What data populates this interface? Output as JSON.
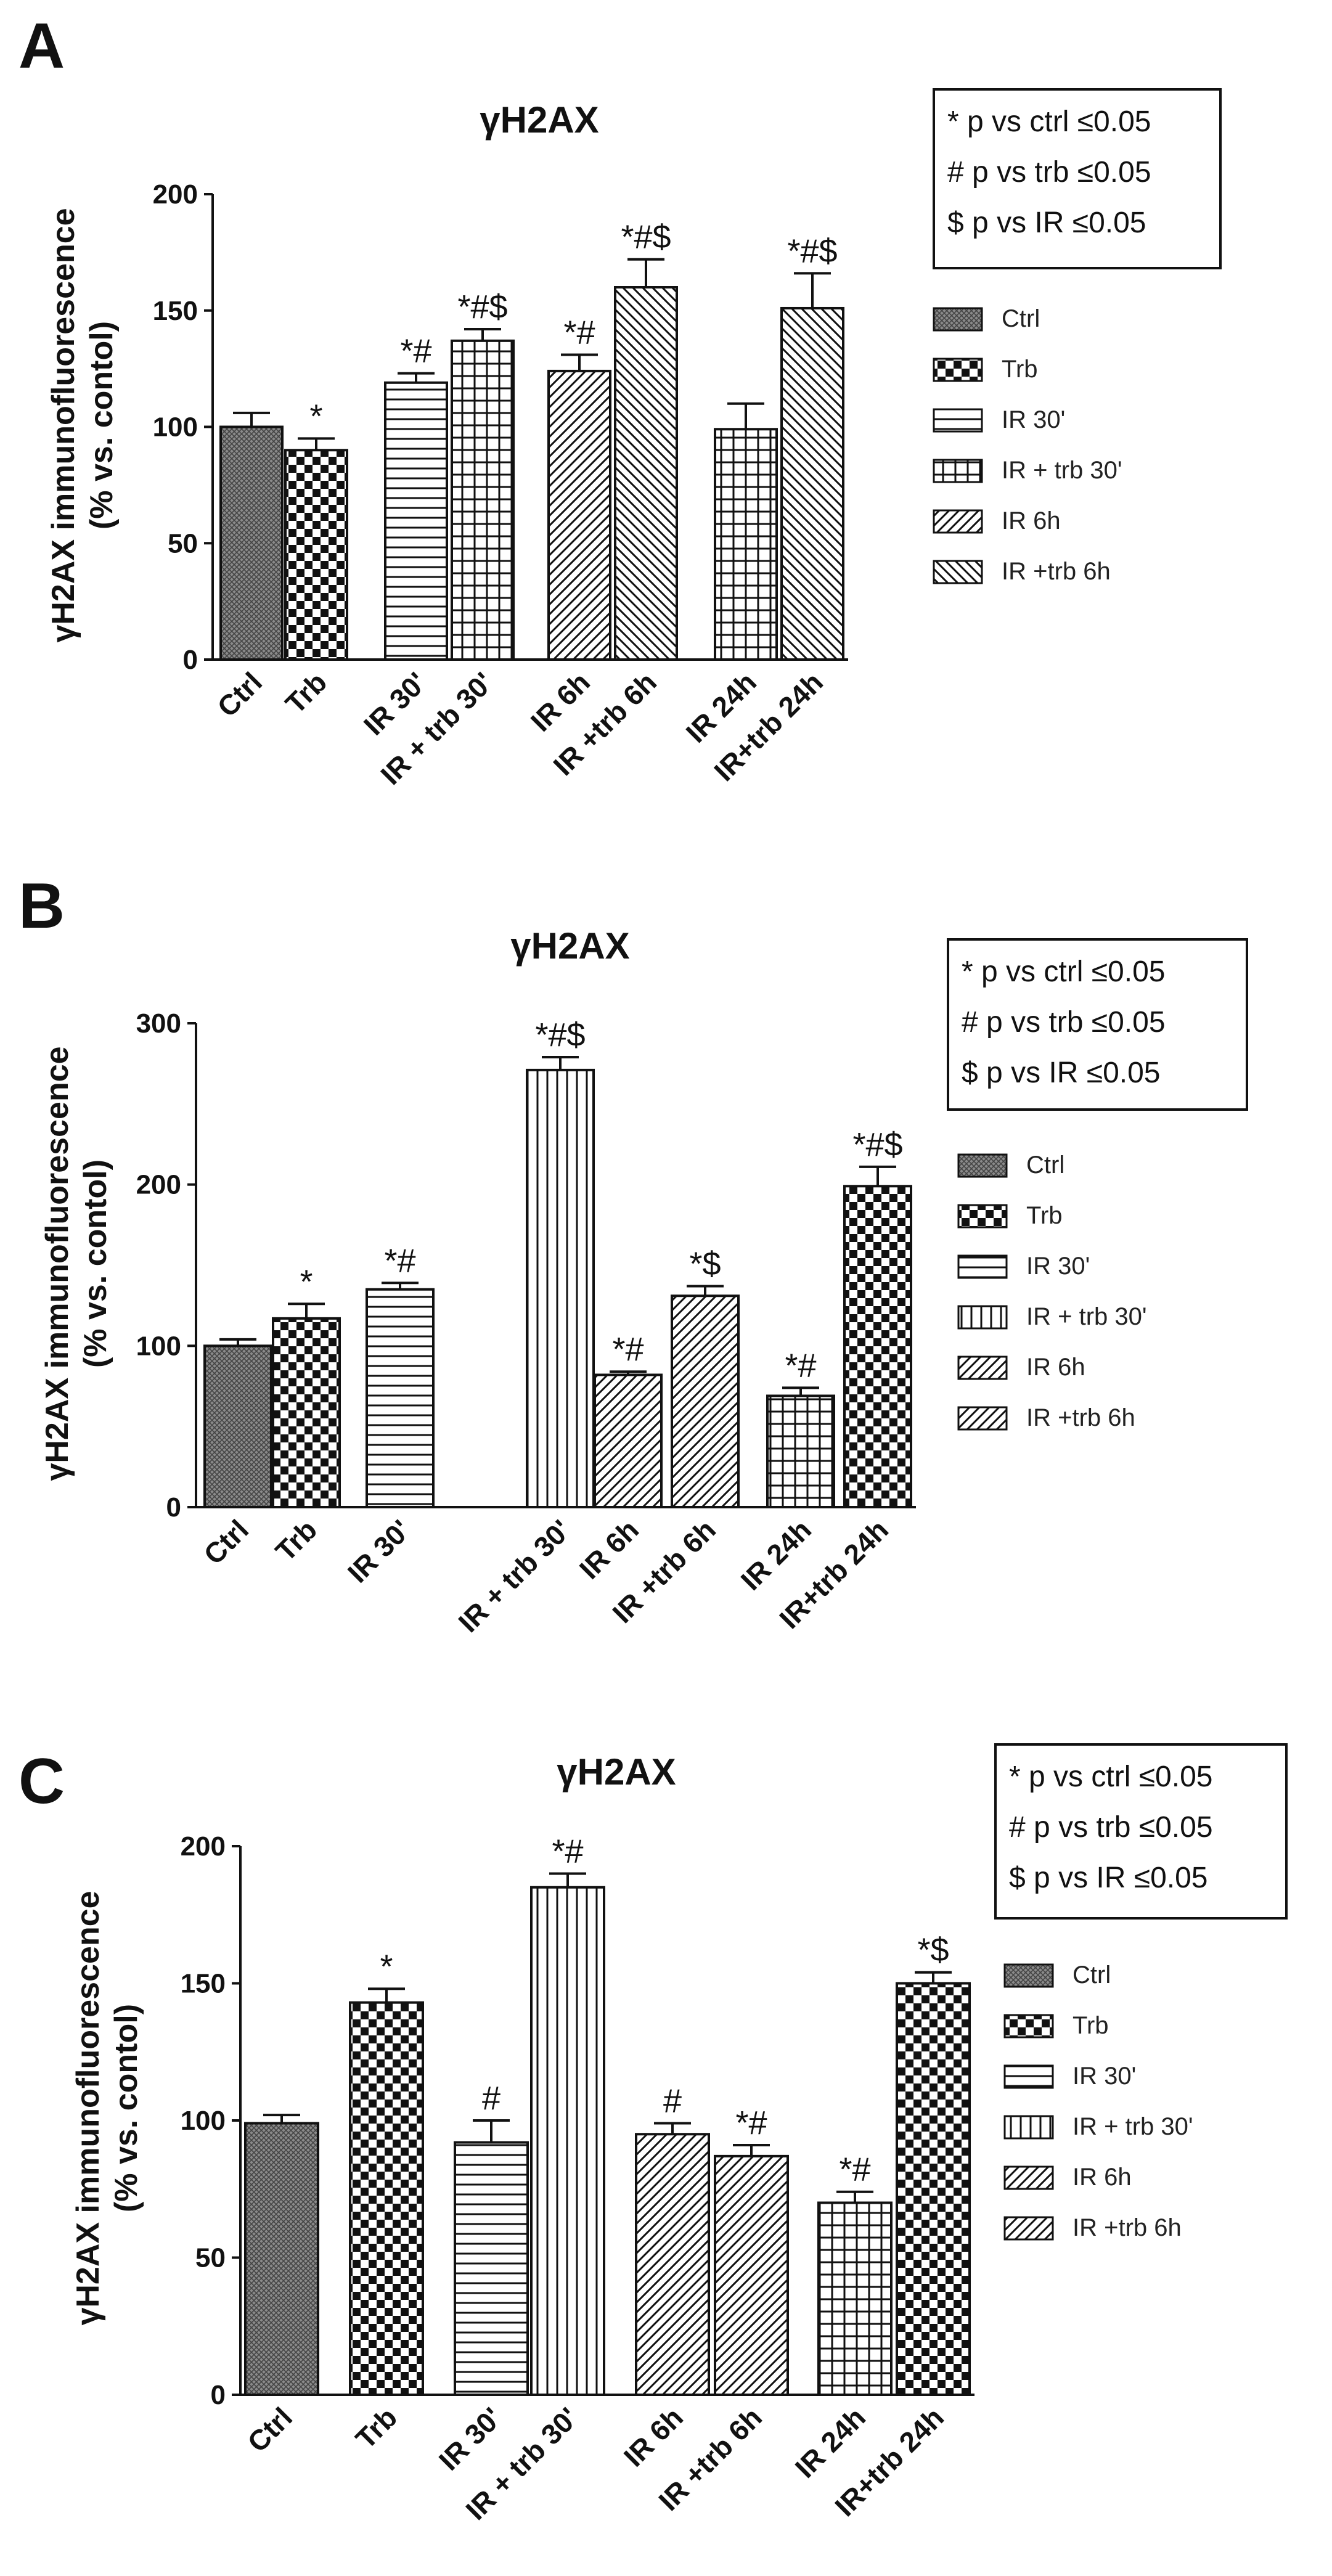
{
  "chart_data": [
    {
      "panel": "A",
      "type": "bar",
      "title": "γH2AX",
      "ylabel": "γH2AX immunofluorescence (% vs. contol)",
      "ylabel_line1": "γH2AX immunofluorescence",
      "ylabel_line2": "(% vs. contol)",
      "xlabel": "",
      "ylim": [
        0,
        200
      ],
      "yticks": [
        0,
        50,
        100,
        150,
        200
      ],
      "categories": [
        "Ctrl",
        "Trb",
        "IR 30'",
        "IR + trb 30'",
        "IR 6h",
        "IR +trb 6h",
        "IR 24h",
        "IR+trb 24h"
      ],
      "values": [
        100,
        90,
        119,
        137,
        124,
        160,
        99,
        151
      ],
      "errors": [
        6,
        5,
        4,
        5,
        7,
        12,
        11,
        15
      ],
      "annotations": [
        "",
        "*",
        "*#",
        "*#$",
        "*#",
        "*#$",
        "",
        "*#$"
      ],
      "patterns": [
        "dense",
        "checker",
        "hlines",
        "grid",
        "diag",
        "diagR",
        "grid",
        "diagR"
      ],
      "significance": [
        "* p vs ctrl ≤0.05",
        "# p vs trb ≤0.05",
        "$ p vs IR ≤0.05"
      ],
      "legend": [
        "Ctrl",
        "Trb",
        "IR 30'",
        "IR + trb 30'",
        "IR 6h",
        "IR +trb 6h"
      ]
    },
    {
      "panel": "B",
      "type": "bar",
      "title": "γH2AX",
      "ylabel": "γH2AX immunofluorescence (% vs. contol)",
      "ylabel_line1": "γH2AX immunofluorescence",
      "ylabel_line2": "(% vs. contol)",
      "xlabel": "",
      "ylim": [
        0,
        300
      ],
      "yticks": [
        0,
        100,
        200,
        300
      ],
      "categories": [
        "Ctrl",
        "Trb",
        "IR 30'",
        "IR + trb 30'",
        "IR 6h",
        "IR +trb 6h",
        "IR 24h",
        "IR+trb 24h"
      ],
      "values": [
        100,
        117,
        135,
        271,
        82,
        131,
        69,
        199
      ],
      "errors": [
        4,
        9,
        4,
        8,
        2,
        6,
        5,
        12
      ],
      "annotations": [
        "",
        "*",
        "*#",
        "*#$",
        "*#",
        "*$",
        "*#",
        "*#$"
      ],
      "patterns": [
        "dense",
        "checker",
        "hlines",
        "vlines",
        "diag",
        "diag",
        "grid",
        "checker"
      ],
      "significance": [
        "* p vs ctrl ≤0.05",
        "# p vs trb ≤0.05",
        "$ p vs IR ≤0.05"
      ],
      "legend": [
        "Ctrl",
        "Trb",
        "IR 30'",
        "IR + trb 30'",
        "IR 6h",
        "IR +trb 6h"
      ]
    },
    {
      "panel": "C",
      "type": "bar",
      "title": "γH2AX",
      "ylabel": "γH2AX immunofluorescence (% vs. contol)",
      "ylabel_line1": "γH2AX immunofluorescence",
      "ylabel_line2": "(% vs. contol)",
      "xlabel": "",
      "ylim": [
        0,
        200
      ],
      "yticks": [
        0,
        50,
        100,
        150,
        200
      ],
      "categories": [
        "Ctrl",
        "Trb",
        "IR 30'",
        "IR + trb 30'",
        "IR 6h",
        "IR +trb 6h",
        "IR 24h",
        "IR+trb 24h"
      ],
      "values": [
        99,
        143,
        92,
        185,
        95,
        87,
        70,
        150
      ],
      "errors": [
        3,
        5,
        8,
        5,
        4,
        4,
        4,
        4
      ],
      "annotations": [
        "",
        "*",
        "#",
        "*#",
        "#",
        "*#",
        "*#",
        "*$"
      ],
      "patterns": [
        "dense",
        "checker",
        "hlines",
        "vlines",
        "diag",
        "diag",
        "grid",
        "checker"
      ],
      "significance": [
        "* p vs ctrl ≤0.05",
        "# p vs trb ≤0.05",
        "$ p vs IR ≤0.05"
      ],
      "legend": [
        "Ctrl",
        "Trb",
        "IR 30'",
        "IR + trb 30'",
        "IR 6h",
        "IR +trb 6h"
      ]
    }
  ]
}
